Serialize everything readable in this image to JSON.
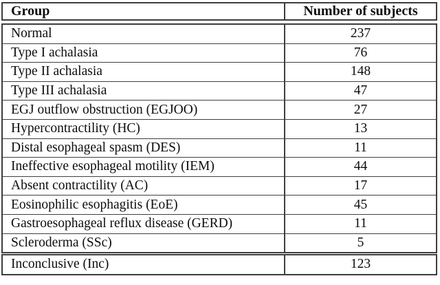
{
  "table": {
    "columns": [
      {
        "label": "Group"
      },
      {
        "label": "Number of subjects"
      }
    ],
    "rows": [
      {
        "group": "Normal",
        "count": "237"
      },
      {
        "group": "Type I achalasia",
        "count": "76"
      },
      {
        "group": "Type II achalasia",
        "count": "148"
      },
      {
        "group": "Type III achalasia",
        "count": "47"
      },
      {
        "group": "EGJ outflow obstruction (EGJOO)",
        "count": "27"
      },
      {
        "group": "Hypercontractility (HC)",
        "count": "13"
      },
      {
        "group": "Distal esophageal spasm (DES)",
        "count": "11"
      },
      {
        "group": "Ineffective esophageal motility (IEM)",
        "count": "44"
      },
      {
        "group": "Absent contractility (AC)",
        "count": "17"
      },
      {
        "group": "Eosinophilic esophagitis (EoE)",
        "count": "45"
      },
      {
        "group": "Gastroesophageal reflux disease (GERD)",
        "count": "11"
      },
      {
        "group": "Scleroderma (SSc)",
        "count": "5"
      },
      {
        "group": "Inconclusive (Inc)",
        "count": "123"
      }
    ],
    "colors": {
      "border": "#3c3c3c",
      "text": "#0d0d0d",
      "background": "#ffffff"
    }
  },
  "chart_data": {
    "type": "table",
    "title": "",
    "categories": [
      "Normal",
      "Type I achalasia",
      "Type II achalasia",
      "Type III achalasia",
      "EGJ outflow obstruction (EGJOO)",
      "Hypercontractility (HC)",
      "Distal esophageal spasm (DES)",
      "Ineffective esophageal motility (IEM)",
      "Absent contractility (AC)",
      "Eosinophilic esophagitis (EoE)",
      "Gastroesophageal reflux disease (GERD)",
      "Scleroderma (SSc)",
      "Inconclusive (Inc)"
    ],
    "values": [
      237,
      76,
      148,
      47,
      27,
      13,
      11,
      44,
      17,
      45,
      11,
      5,
      123
    ],
    "xlabel": "Group",
    "ylabel": "Number of subjects"
  }
}
